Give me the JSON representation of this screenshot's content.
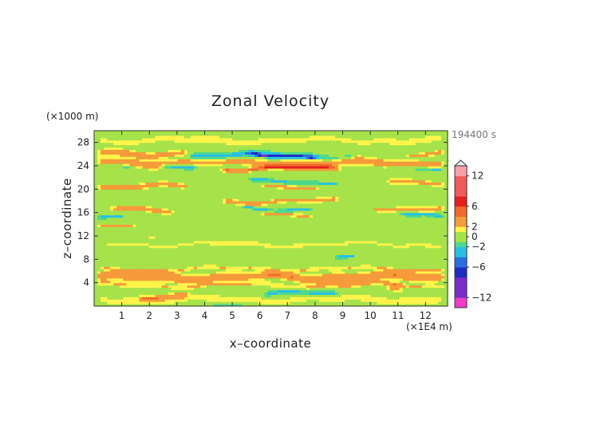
{
  "chart_data": {
    "type": "heatmap",
    "title": "Zonal Velocity",
    "xlabel": "x–coordinate",
    "ylabel": "z–coordinate",
    "x_unit": "(×1E4 m)",
    "y_unit": "(×1000 m)",
    "time_label": "194400 s",
    "xlim": [
      0,
      12.8
    ],
    "ylim": [
      0,
      30
    ],
    "x_ticks": [
      1,
      2,
      3,
      4,
      5,
      6,
      7,
      8,
      9,
      10,
      11,
      12
    ],
    "y_ticks": [
      4,
      8,
      12,
      16,
      20,
      24,
      28
    ],
    "colorbar": {
      "labels": [
        "12",
        "6",
        "2",
        "0",
        "−2",
        "−6",
        "−12"
      ],
      "label_values": [
        12,
        6,
        2,
        0,
        -2,
        -6,
        -12
      ],
      "range": [
        -14,
        14
      ]
    },
    "features": [
      {
        "x0": 0,
        "x1": 12.8,
        "y": 5.0,
        "half_height": 0.9,
        "value": 4
      },
      {
        "x0": 0,
        "x1": 12.8,
        "y": 3.6,
        "half_height": 0.5,
        "value": 2
      },
      {
        "x0": 0,
        "x1": 12.8,
        "y": 6.4,
        "half_height": 0.4,
        "value": 2
      },
      {
        "x0": 0,
        "x1": 12.8,
        "y": 1.2,
        "half_height": 0.9,
        "value": 1.5
      },
      {
        "x0": 1.5,
        "x1": 3.5,
        "y": 1.5,
        "half_height": 0.5,
        "value": 3
      },
      {
        "x0": 6.0,
        "x1": 9.0,
        "y": 2.2,
        "half_height": 0.5,
        "value": -2.5
      },
      {
        "x0": 3.5,
        "x1": 5.5,
        "y": 0.2,
        "half_height": 0.3,
        "value": -2.5
      },
      {
        "x0": 10.5,
        "x1": 11.3,
        "y": 3.0,
        "half_height": 0.8,
        "value": 3
      },
      {
        "x0": 8.6,
        "x1": 9.6,
        "y": 8.6,
        "half_height": 0.35,
        "value": -3
      },
      {
        "x0": 0.2,
        "x1": 12.8,
        "y": 10.6,
        "half_height": 0.7,
        "value": 1.2
      },
      {
        "x0": 1.0,
        "x1": 2.5,
        "y": 12.2,
        "half_height": 0.3,
        "value": 1.2
      },
      {
        "x0": 0,
        "x1": 1.6,
        "y": 14.0,
        "half_height": 0.3,
        "value": 3
      },
      {
        "x0": 0,
        "x1": 1.2,
        "y": 15.5,
        "half_height": 0.35,
        "value": -3
      },
      {
        "x0": 6.0,
        "x1": 8.0,
        "y": 15.5,
        "half_height": 0.35,
        "value": 3
      },
      {
        "x0": 11.0,
        "x1": 12.8,
        "y": 15.6,
        "half_height": 0.35,
        "value": -3
      },
      {
        "x0": 0.5,
        "x1": 3.0,
        "y": 16.6,
        "half_height": 0.45,
        "value": 3.5
      },
      {
        "x0": 5.2,
        "x1": 8.0,
        "y": 16.7,
        "half_height": 0.3,
        "value": -3
      },
      {
        "x0": 10.0,
        "x1": 12.8,
        "y": 16.8,
        "half_height": 0.45,
        "value": 3.5
      },
      {
        "x0": 4.5,
        "x1": 9.0,
        "y": 18.0,
        "half_height": 0.55,
        "value": 3
      },
      {
        "x0": 0,
        "x1": 3.5,
        "y": 20.5,
        "half_height": 0.5,
        "value": 3.5
      },
      {
        "x0": 6.0,
        "x1": 8.2,
        "y": 20.2,
        "half_height": 0.35,
        "value": 3
      },
      {
        "x0": 5.5,
        "x1": 9.0,
        "y": 21.3,
        "half_height": 0.45,
        "value": -2.5
      },
      {
        "x0": 10.5,
        "x1": 12.8,
        "y": 21.3,
        "half_height": 0.45,
        "value": 3.5
      },
      {
        "x0": 0,
        "x1": 12.8,
        "y": 24.6,
        "half_height": 0.9,
        "value": 3.2
      },
      {
        "x0": 0,
        "x1": 1.5,
        "y": 24.1,
        "half_height": 0.35,
        "value": -3
      },
      {
        "x0": 2.3,
        "x1": 3.8,
        "y": 23.6,
        "half_height": 0.4,
        "value": -4
      },
      {
        "x0": 4.5,
        "x1": 9.0,
        "y": 23.6,
        "half_height": 0.5,
        "value": 4.5
      },
      {
        "x0": 11.5,
        "x1": 12.8,
        "y": 23.2,
        "half_height": 0.35,
        "value": -3
      },
      {
        "x0": 3.3,
        "x1": 9.5,
        "y": 25.8,
        "half_height": 0.7,
        "value": -3
      },
      {
        "x0": 5.5,
        "x1": 8.2,
        "y": 25.8,
        "half_height": 0.35,
        "value": -6
      },
      {
        "x0": 0,
        "x1": 3.5,
        "y": 26.2,
        "half_height": 0.6,
        "value": 3.5
      },
      {
        "x0": 11.2,
        "x1": 12.8,
        "y": 26.2,
        "half_height": 0.45,
        "value": 3.5
      },
      {
        "x0": 0,
        "x1": 12.8,
        "y": 28.4,
        "half_height": 1.2,
        "value": 1.2
      }
    ]
  }
}
